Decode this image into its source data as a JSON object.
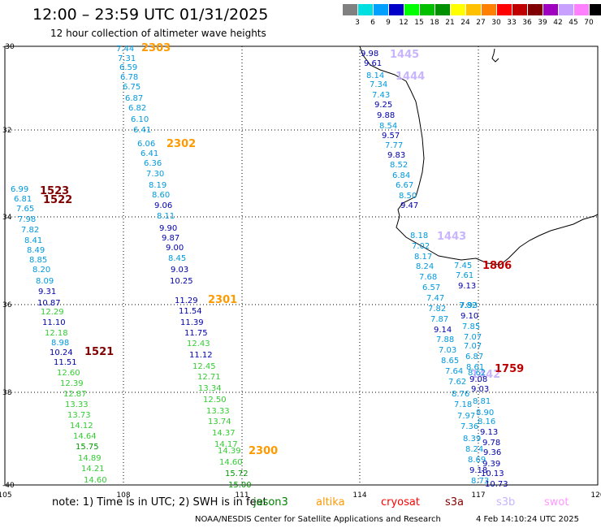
{
  "header": {
    "title": "12:00 – 23:59 UTC 01/31/2025",
    "subtitle": "12 hour collection of altimeter wave heights"
  },
  "colorbar": {
    "unit": "(ft)",
    "items": [
      {
        "label": "3",
        "color": "#808080"
      },
      {
        "label": "6",
        "color": "#00e0e0"
      },
      {
        "label": "9",
        "color": "#00a0ff"
      },
      {
        "label": "12",
        "color": "#0000c8"
      },
      {
        "label": "15",
        "color": "#00ff00"
      },
      {
        "label": "18",
        "color": "#00c000"
      },
      {
        "label": "21",
        "color": "#009000"
      },
      {
        "label": "24",
        "color": "#ffff00"
      },
      {
        "label": "27",
        "color": "#ffc000"
      },
      {
        "label": "30",
        "color": "#ff8000"
      },
      {
        "label": "33",
        "color": "#ff0000"
      },
      {
        "label": "36",
        "color": "#c00000"
      },
      {
        "label": "39",
        "color": "#800000"
      },
      {
        "label": "42",
        "color": "#a000c0"
      },
      {
        "label": "45",
        "color": "#c8a0ff"
      },
      {
        "label": "70",
        "color": "#ff80ff"
      },
      {
        "label": "",
        "color": "#000000"
      }
    ]
  },
  "axes": {
    "lat_labels": [
      "-30",
      "32",
      "34",
      "36",
      "38",
      "-40"
    ],
    "lon_labels": [
      "105",
      "108",
      "111",
      "114",
      "117",
      "120"
    ]
  },
  "passes": [
    {
      "id": "2303",
      "color": "#ff9900"
    },
    {
      "id": "2302",
      "color": "#ff9900"
    },
    {
      "id": "2301",
      "color": "#ff9900"
    },
    {
      "id": "2300",
      "color": "#ff9900"
    },
    {
      "id": "1523",
      "color": "#800000"
    },
    {
      "id": "1522",
      "color": "#800000"
    },
    {
      "id": "1521",
      "color": "#800000"
    },
    {
      "id": "1445",
      "color": "#c8b4ff"
    },
    {
      "id": "1444",
      "color": "#c8b4ff"
    },
    {
      "id": "1443",
      "color": "#c8b4ff"
    },
    {
      "id": "1442",
      "color": "#c8b4ff"
    },
    {
      "id": "1806",
      "color": "#c00000"
    },
    {
      "id": "1759",
      "color": "#c00000"
    }
  ],
  "tracks": [
    {
      "name": "track-2303",
      "values": [
        "7.44",
        "7.31",
        "6.59",
        "6.78",
        "6.75",
        "6.87",
        "6.82",
        "6.10",
        "6.41"
      ]
    },
    {
      "name": "track-2302",
      "values": [
        "6.06",
        "6.41",
        "6.36",
        "7.30",
        "8.19",
        "8.60",
        "9.06",
        "8.11",
        "9.90",
        "9.87",
        "9.00",
        "8.45",
        "9.03",
        "10.25"
      ]
    },
    {
      "name": "track-2301",
      "values": [
        "11.29",
        "11.54",
        "11.39",
        "11.75",
        "12.43",
        "11.12",
        "12.45",
        "12.71",
        "13.34",
        "12.50",
        "13.33",
        "13.74",
        "14.37",
        "14.17",
        "14.39",
        "14.60",
        "15.72",
        "15.00"
      ]
    },
    {
      "name": "track-1523",
      "values": [
        "6.99",
        "6.81",
        "7.65",
        "7.98",
        "7.82",
        "8.41",
        "8.49",
        "8.85",
        "8.20",
        "8.09",
        "9.31",
        "10.87",
        "12.29",
        "11.10",
        "12.18",
        "8.98",
        "10.24",
        "11.51",
        "12.60",
        "12.39",
        "12.87",
        "13.33",
        "13.73",
        "14.12",
        "14.64",
        "15.75",
        "14.89",
        "14.21",
        "14.60"
      ]
    },
    {
      "name": "track-1445",
      "values": [
        "9.98",
        "9.61",
        "8.14",
        "7.34",
        "7.43",
        "9.25",
        "9.88",
        "8.54",
        "9.57",
        "7.77",
        "9.83",
        "8.52",
        "6.84",
        "6.67",
        "8.50",
        "9.47"
      ]
    },
    {
      "name": "track-1443",
      "values": [
        "8.18",
        "7.02",
        "8.17",
        "8.24",
        "7.68",
        "6.57",
        "7.47",
        "7.82",
        "7.87",
        "9.14",
        "7.88",
        "7.03",
        "8.65",
        "7.64",
        "7.62",
        "8.76",
        "7.18",
        "7.97",
        "7.36",
        "8.39",
        "8.24",
        "8.69",
        "9.18",
        "8.73"
      ]
    },
    {
      "name": "track-1806",
      "values": [
        "7.45",
        "7.61",
        "9.13",
        "7.82",
        "7.93",
        "9.10",
        "7.85",
        "7.07",
        "7.07",
        "6.87",
        "8.61",
        "8.62",
        "9.08",
        "9.03",
        "8.81",
        "8.90",
        "8.16",
        "9.13",
        "9.78",
        "9.36",
        "9.39",
        "10.13",
        "10.73"
      ]
    }
  ],
  "footer": {
    "note_prefix": "note:  1) Time is in UTC; 2) SWH is in feet",
    "missions": [
      {
        "label": "jason3",
        "color": "#008000"
      },
      {
        "label": "altika",
        "color": "#ff9900"
      },
      {
        "label": "cryosat",
        "color": "#ff0000"
      },
      {
        "label": "s3a",
        "color": "#800000"
      },
      {
        "label": "s3b",
        "color": "#c8b4ff"
      },
      {
        "label": "swot",
        "color": "#ff99ff"
      }
    ],
    "credit": "NOAA/NESDIS Center for Satellite Applications and Research",
    "date": "4 Feb 14:10:24 UTC 2025"
  }
}
